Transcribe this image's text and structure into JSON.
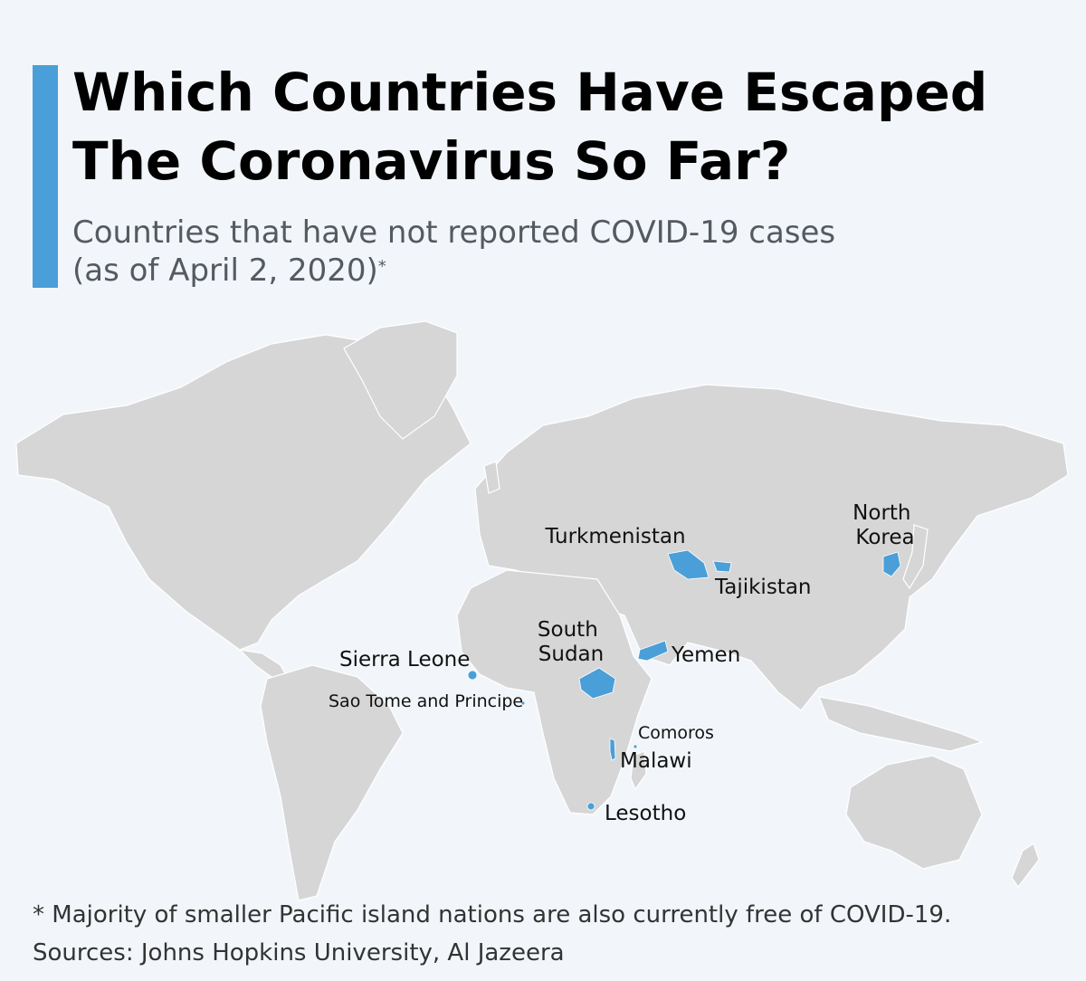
{
  "header": {
    "title_line1": "Which Countries Have Escaped",
    "title_line2": "The Coronavirus So Far?",
    "subtitle_line1": "Countries that have not reported COVID-19 cases",
    "subtitle_line2": "(as of April 2, 2020)",
    "subtitle_marker": "*"
  },
  "map": {
    "highlighted_countries": [
      {
        "id": "turkmenistan",
        "label": [
          "Turkmenistan"
        ]
      },
      {
        "id": "tajikistan",
        "label": [
          "Tajikistan"
        ]
      },
      {
        "id": "north-korea",
        "label": [
          "North",
          "Korea"
        ]
      },
      {
        "id": "south-sudan",
        "label": [
          "South",
          "Sudan"
        ]
      },
      {
        "id": "yemen",
        "label": [
          "Yemen"
        ]
      },
      {
        "id": "sierra-leone",
        "label": [
          "Sierra Leone"
        ]
      },
      {
        "id": "sao-tome",
        "label": [
          "Sao Tome and Principe"
        ]
      },
      {
        "id": "comoros",
        "label": [
          "Comoros"
        ]
      },
      {
        "id": "malawi",
        "label": [
          "Malawi"
        ]
      },
      {
        "id": "lesotho",
        "label": [
          "Lesotho"
        ]
      }
    ]
  },
  "footer": {
    "note": "* Majority of smaller Pacific island nations are also currently free of COVID-19.",
    "sources": "Sources: Johns Hopkins University, Al Jazeera"
  },
  "colors": {
    "accent": "#4a9fd8",
    "highlight": "#4a9fd8",
    "land": "#d6d6d6",
    "background": "#f2f6fa"
  }
}
